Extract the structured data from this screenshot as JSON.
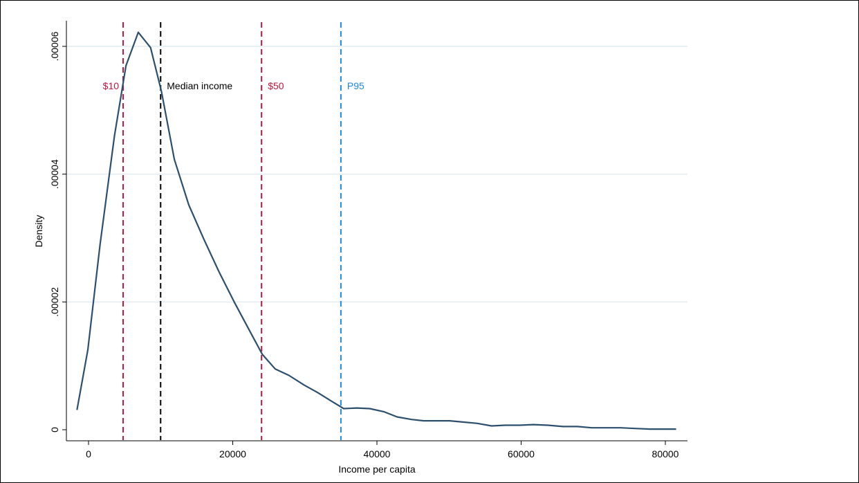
{
  "chart_data": {
    "type": "line",
    "title": "",
    "xlabel": "Income per capita",
    "ylabel": "Density",
    "xlim": [
      -2000,
      82000
    ],
    "ylim": [
      0,
      6.35e-05
    ],
    "x_ticks": [
      0,
      20000,
      40000,
      60000,
      80000
    ],
    "x_tick_labels": [
      "0",
      "20000",
      "40000",
      "60000",
      "80000"
    ],
    "y_ticks": [
      0,
      2e-05,
      4e-05,
      6e-05
    ],
    "y_tick_labels": [
      "0",
      ".00002",
      ".00004",
      ".00006"
    ],
    "grid": "horizontal",
    "colors": {
      "curve": "#2c4f6e",
      "red": "#c0163f",
      "black": "#000000",
      "blue": "#1e88e5",
      "grid": "#e2ecf0"
    },
    "series": [
      {
        "x": [
          -1600,
          -100,
          1600,
          3600,
          5200,
          6900,
          8600,
          10100,
          11900,
          13900,
          16000,
          18100,
          20200,
          22100,
          24100,
          25900,
          27800,
          29900,
          31800,
          33800,
          35400,
          37200,
          39000,
          41000,
          42800,
          44800,
          46500,
          48300,
          50100,
          51900,
          53900,
          55900,
          57800,
          59800,
          61700,
          63700,
          65800,
          67800,
          69800,
          71800,
          73800,
          75800,
          77900,
          79800,
          81500
        ],
        "y": [
          3.1e-06,
          1.25e-05,
          2.9e-05,
          4.6e-05,
          5.7e-05,
          6.22e-05,
          5.98e-05,
          5.3e-05,
          4.23e-05,
          3.52e-05,
          2.98e-05,
          2.47e-05,
          2e-05,
          1.6e-05,
          1.18e-05,
          9.5e-06,
          8.5e-06,
          7e-06,
          5.8e-06,
          4.4e-06,
          3.3e-06,
          3.4e-06,
          3.3e-06,
          2.8e-06,
          2e-06,
          1.6e-06,
          1.4e-06,
          1.4e-06,
          1.4e-06,
          1.2e-06,
          1e-06,
          6e-07,
          7e-07,
          7e-07,
          8e-07,
          7e-07,
          5e-07,
          5e-07,
          3e-07,
          3e-07,
          3e-07,
          2e-07,
          1e-07,
          1e-07,
          1e-07
        ]
      }
    ],
    "reference_lines": [
      {
        "x": 4800,
        "label": "$10",
        "color": "#c0163f",
        "label_side": "left"
      },
      {
        "x": 10000,
        "label": "Median income",
        "color": "#000000",
        "label_side": "right"
      },
      {
        "x": 24000,
        "label": "$50",
        "color": "#c0163f",
        "label_side": "right"
      },
      {
        "x": 35000,
        "label": "P95",
        "color": "#1e88e5",
        "label_side": "right"
      }
    ]
  }
}
